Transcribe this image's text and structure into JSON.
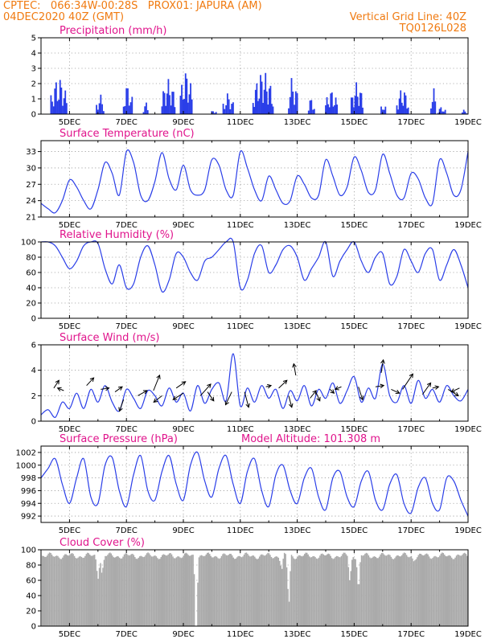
{
  "header": {
    "line1_left": "CPTEC:   066:34W-00:28S   PROX01: JAPURA (AM)",
    "line2_left": "04DEC2020 40Z (GMT)",
    "line2_right": "Vertical Grid Line: 40Z",
    "line3_right": "TQ0126L028",
    "header_color": "#f07a10",
    "title_color": "#e0148c"
  },
  "x_axis": {
    "min": 4,
    "max": 19,
    "ticks": [
      5,
      7,
      9,
      11,
      13,
      15,
      17,
      19
    ],
    "tick_labels": [
      "5DEC",
      "7DEC",
      "9DEC",
      "11DEC",
      "13DEC",
      "15DEC",
      "17DEC",
      "19DEC"
    ]
  },
  "chart_data": [
    {
      "type": "bar",
      "title": "Precipitation (mm/h)",
      "ylim": [
        0,
        5
      ],
      "yticks": [
        0,
        1,
        2,
        3,
        4,
        5
      ],
      "color": "#2a3ee8",
      "bursts": [
        {
          "start": 4.35,
          "end": 4.9,
          "peak": 2.4
        },
        {
          "start": 5.95,
          "end": 6.2,
          "peak": 1.3
        },
        {
          "start": 6.9,
          "end": 7.2,
          "peak": 2.0
        },
        {
          "start": 7.6,
          "end": 7.75,
          "peak": 0.8
        },
        {
          "start": 8.25,
          "end": 8.7,
          "peak": 2.3
        },
        {
          "start": 8.9,
          "end": 9.3,
          "peak": 2.9
        },
        {
          "start": 10.0,
          "end": 10.15,
          "peak": 0.3
        },
        {
          "start": 10.4,
          "end": 10.75,
          "peak": 1.4
        },
        {
          "start": 11.45,
          "end": 12.15,
          "peak": 2.8
        },
        {
          "start": 12.7,
          "end": 13.0,
          "peak": 2.5
        },
        {
          "start": 13.4,
          "end": 13.6,
          "peak": 1.1
        },
        {
          "start": 14.0,
          "end": 14.4,
          "peak": 1.6
        },
        {
          "start": 14.9,
          "end": 15.3,
          "peak": 2.1
        },
        {
          "start": 15.95,
          "end": 16.1,
          "peak": 0.8
        },
        {
          "start": 16.5,
          "end": 16.9,
          "peak": 1.7
        },
        {
          "start": 17.7,
          "end": 17.85,
          "peak": 1.8
        },
        {
          "start": 17.95,
          "end": 18.2,
          "peak": 0.5
        },
        {
          "start": 18.8,
          "end": 18.95,
          "peak": 0.3
        }
      ]
    },
    {
      "type": "line",
      "title": "Surface Temperature (nC)",
      "ylim": [
        21,
        35
      ],
      "yticks": [
        21,
        24,
        27,
        30,
        33
      ],
      "color": "#2a3ee8",
      "x": [
        4.0,
        4.25,
        4.5,
        4.75,
        5.0,
        5.25,
        5.5,
        5.75,
        6.0,
        6.25,
        6.5,
        6.75,
        7.0,
        7.25,
        7.5,
        7.75,
        8.0,
        8.25,
        8.5,
        8.75,
        9.0,
        9.25,
        9.5,
        9.75,
        10.0,
        10.25,
        10.5,
        10.75,
        11.0,
        11.25,
        11.5,
        11.75,
        12.0,
        12.25,
        12.5,
        12.75,
        13.0,
        13.25,
        13.5,
        13.75,
        14.0,
        14.25,
        14.5,
        14.75,
        15.0,
        15.25,
        15.5,
        15.75,
        16.0,
        16.25,
        16.5,
        16.75,
        17.0,
        17.25,
        17.5,
        17.75,
        18.0,
        18.25,
        18.5,
        18.75,
        19.0
      ],
      "values": [
        23.5,
        22.5,
        21.8,
        24.0,
        27.8,
        26.5,
        24.0,
        22.5,
        26.0,
        31.0,
        29.0,
        25.0,
        33.0,
        31.0,
        25.0,
        24.0,
        27.5,
        32.8,
        28.0,
        26.0,
        30.5,
        26.0,
        25.0,
        26.0,
        31.5,
        30.5,
        26.0,
        25.0,
        33.0,
        30.0,
        26.0,
        24.0,
        28.5,
        26.0,
        23.5,
        24.0,
        28.5,
        27.0,
        24.5,
        25.0,
        31.5,
        28.5,
        25.0,
        26.5,
        32.0,
        29.5,
        25.5,
        26.0,
        32.5,
        29.0,
        25.0,
        24.5,
        29.0,
        28.0,
        24.5,
        23.5,
        31.5,
        29.0,
        25.0,
        26.0,
        33.0
      ]
    },
    {
      "type": "line",
      "title": "Relative Humidity (%)",
      "ylim": [
        0,
        100
      ],
      "yticks": [
        0,
        20,
        40,
        60,
        80,
        100
      ],
      "color": "#2a3ee8",
      "x": [
        4.0,
        4.25,
        4.5,
        4.75,
        5.0,
        5.25,
        5.5,
        5.75,
        6.0,
        6.25,
        6.5,
        6.75,
        7.0,
        7.25,
        7.5,
        7.75,
        8.0,
        8.25,
        8.5,
        8.75,
        9.0,
        9.25,
        9.5,
        9.75,
        10.0,
        10.25,
        10.5,
        10.75,
        11.0,
        11.25,
        11.5,
        11.75,
        12.0,
        12.25,
        12.5,
        12.75,
        13.0,
        13.25,
        13.5,
        13.75,
        14.0,
        14.25,
        14.5,
        14.75,
        15.0,
        15.25,
        15.5,
        15.75,
        16.0,
        16.25,
        16.5,
        16.75,
        17.0,
        17.25,
        17.5,
        17.75,
        18.0,
        18.25,
        18.5,
        18.75,
        19.0
      ],
      "values": [
        100,
        100,
        95,
        80,
        65,
        75,
        95,
        100,
        98,
        65,
        45,
        70,
        40,
        45,
        80,
        95,
        70,
        35,
        50,
        85,
        80,
        60,
        50,
        75,
        80,
        90,
        100,
        100,
        40,
        50,
        85,
        95,
        60,
        70,
        90,
        95,
        80,
        50,
        65,
        80,
        100,
        55,
        75,
        90,
        100,
        75,
        60,
        80,
        85,
        45,
        55,
        90,
        75,
        60,
        85,
        90,
        50,
        70,
        90,
        70,
        40
      ]
    },
    {
      "type": "line",
      "title": "Surface Wind (m/s)",
      "ylim": [
        0,
        6
      ],
      "yticks": [
        0,
        2,
        4,
        6
      ],
      "color": "#2a3ee8",
      "x": [
        4.0,
        4.25,
        4.5,
        4.75,
        5.0,
        5.25,
        5.5,
        5.75,
        6.0,
        6.25,
        6.5,
        6.75,
        7.0,
        7.25,
        7.5,
        7.75,
        8.0,
        8.25,
        8.5,
        8.75,
        9.0,
        9.25,
        9.5,
        9.75,
        10.0,
        10.25,
        10.5,
        10.75,
        11.0,
        11.25,
        11.5,
        11.75,
        12.0,
        12.25,
        12.5,
        12.75,
        13.0,
        13.25,
        13.5,
        13.75,
        14.0,
        14.25,
        14.5,
        14.75,
        15.0,
        15.25,
        15.5,
        15.75,
        16.0,
        16.25,
        16.5,
        16.75,
        17.0,
        17.25,
        17.5,
        17.75,
        18.0,
        18.25,
        18.5,
        18.75,
        19.0
      ],
      "values": [
        0.5,
        0.9,
        0.3,
        1.5,
        1.0,
        2.2,
        1.0,
        2.5,
        1.5,
        2.8,
        1.5,
        0.8,
        2.5,
        1.8,
        1.0,
        2.4,
        2.0,
        1.2,
        2.6,
        1.5,
        2.2,
        0.8,
        2.8,
        1.4,
        2.5,
        3.0,
        1.6,
        5.3,
        1.2,
        2.6,
        1.5,
        2.8,
        1.8,
        2.5,
        1.0,
        2.4,
        1.6,
        2.8,
        1.2,
        2.5,
        1.8,
        3.0,
        1.4,
        2.4,
        3.5,
        1.5,
        2.6,
        1.8,
        4.5,
        2.0,
        1.5,
        2.8,
        1.4,
        3.2,
        1.8,
        2.5,
        1.5,
        2.8,
        2.0,
        1.6,
        2.5
      ],
      "vectors": [
        {
          "x": 4.45,
          "y": 2.6,
          "u": 0.25,
          "v": 0.6
        },
        {
          "x": 4.8,
          "y": 2.4,
          "u": -0.3,
          "v": 0.2
        },
        {
          "x": 5.6,
          "y": 2.8,
          "u": 0.35,
          "v": 0.6
        },
        {
          "x": 6.1,
          "y": 2.5,
          "u": 0.4,
          "v": 0.1
        },
        {
          "x": 6.6,
          "y": 2.3,
          "u": 0.35,
          "v": 0.4
        },
        {
          "x": 6.9,
          "y": 1.7,
          "u": -0.2,
          "v": -0.9
        },
        {
          "x": 7.4,
          "y": 2.0,
          "u": 0.45,
          "v": 0.4
        },
        {
          "x": 7.95,
          "y": 2.4,
          "u": 0.3,
          "v": 1.2
        },
        {
          "x": 8.25,
          "y": 2.0,
          "u": -0.4,
          "v": -0.5
        },
        {
          "x": 8.75,
          "y": 2.6,
          "u": 0.45,
          "v": 0.5
        },
        {
          "x": 9.0,
          "y": 2.2,
          "u": -0.5,
          "v": -0.5
        },
        {
          "x": 9.6,
          "y": 2.0,
          "u": 0.5,
          "v": 0.9
        },
        {
          "x": 9.85,
          "y": 2.3,
          "u": 0.3,
          "v": -0.7
        },
        {
          "x": 10.7,
          "y": 2.3,
          "u": -0.3,
          "v": -1.0
        },
        {
          "x": 11.15,
          "y": 2.3,
          "u": 0.2,
          "v": -1.2
        },
        {
          "x": 11.9,
          "y": 2.7,
          "u": 0.25,
          "v": 0.1
        },
        {
          "x": 12.35,
          "y": 2.6,
          "u": 0.4,
          "v": 0.6
        },
        {
          "x": 12.7,
          "y": 2.0,
          "u": 0.15,
          "v": -0.9
        },
        {
          "x": 12.95,
          "y": 3.6,
          "u": -0.1,
          "v": 0.9
        },
        {
          "x": 13.45,
          "y": 1.8,
          "u": 0.3,
          "v": 0.6
        },
        {
          "x": 13.65,
          "y": 2.3,
          "u": 0.2,
          "v": -0.7
        },
        {
          "x": 14.15,
          "y": 2.5,
          "u": 0.2,
          "v": -0.3
        },
        {
          "x": 14.55,
          "y": 2.7,
          "u": -0.3,
          "v": -0.2
        },
        {
          "x": 15.15,
          "y": 2.7,
          "u": 0.2,
          "v": -1.0
        },
        {
          "x": 15.75,
          "y": 2.7,
          "u": 0.4,
          "v": 0.1
        },
        {
          "x": 15.95,
          "y": 3.8,
          "u": 0.1,
          "v": 1.0
        },
        {
          "x": 16.3,
          "y": 2.5,
          "u": 0.4,
          "v": -0.3
        },
        {
          "x": 16.7,
          "y": 2.5,
          "u": 0.5,
          "v": 1.2
        },
        {
          "x": 17.4,
          "y": 2.1,
          "u": 0.4,
          "v": 0.9
        },
        {
          "x": 17.75,
          "y": 2.6,
          "u": 0.3,
          "v": 0.1
        },
        {
          "x": 18.3,
          "y": 2.5,
          "u": 0.5,
          "v": -0.5
        },
        {
          "x": 18.7,
          "y": 2.6,
          "u": -0.4,
          "v": -0.3
        }
      ]
    },
    {
      "type": "line",
      "title": "Surface Pressure (hPa)",
      "annotation": "Model Altitude: 101.308 m",
      "ylim": [
        991,
        1003
      ],
      "yticks": [
        992,
        994,
        996,
        998,
        1000,
        1002
      ],
      "color": "#2a3ee8",
      "x": [
        4.0,
        4.25,
        4.5,
        4.75,
        5.0,
        5.25,
        5.5,
        5.75,
        6.0,
        6.25,
        6.5,
        6.75,
        7.0,
        7.25,
        7.5,
        7.75,
        8.0,
        8.25,
        8.5,
        8.75,
        9.0,
        9.25,
        9.5,
        9.75,
        10.0,
        10.25,
        10.5,
        10.75,
        11.0,
        11.25,
        11.5,
        11.75,
        12.0,
        12.25,
        12.5,
        12.75,
        13.0,
        13.25,
        13.5,
        13.75,
        14.0,
        14.25,
        14.5,
        14.75,
        15.0,
        15.25,
        15.5,
        15.75,
        16.0,
        16.25,
        16.5,
        16.75,
        17.0,
        17.25,
        17.5,
        17.75,
        18.0,
        18.25,
        18.5,
        18.75,
        19.0
      ],
      "values": [
        998.0,
        999.5,
        1001.0,
        997.0,
        994.0,
        998.0,
        1001.0,
        995.0,
        994.0,
        1000.0,
        1001.2,
        996.0,
        993.5,
        998.5,
        1001.5,
        996.0,
        994.5,
        999.0,
        1001.5,
        997.0,
        994.5,
        1000.0,
        1002.0,
        997.5,
        995.0,
        999.5,
        1001.5,
        997.0,
        994.0,
        999.0,
        1001.0,
        996.0,
        993.5,
        998.5,
        1000.0,
        996.0,
        994.0,
        998.0,
        999.5,
        995.0,
        993.0,
        998.0,
        999.0,
        995.0,
        993.5,
        997.5,
        999.0,
        994.5,
        993.0,
        997.0,
        998.5,
        994.0,
        992.5,
        996.5,
        998.0,
        994.0,
        993.0,
        998.0,
        997.5,
        994.5,
        992.0
      ]
    },
    {
      "type": "bar",
      "title": "Cloud Cover (%)",
      "ylim": [
        0,
        100
      ],
      "yticks": [
        0,
        20,
        40,
        60,
        80,
        100
      ],
      "color": "#aaaaaa",
      "base": 92,
      "dips": [
        {
          "x": 6.0,
          "value": 62
        },
        {
          "x": 6.15,
          "value": 70
        },
        {
          "x": 9.45,
          "value": 0
        },
        {
          "x": 12.45,
          "value": 75
        },
        {
          "x": 12.7,
          "value": 32
        },
        {
          "x": 14.85,
          "value": 60
        },
        {
          "x": 15.15,
          "value": 55
        },
        {
          "x": 17.1,
          "value": 85
        }
      ]
    }
  ]
}
